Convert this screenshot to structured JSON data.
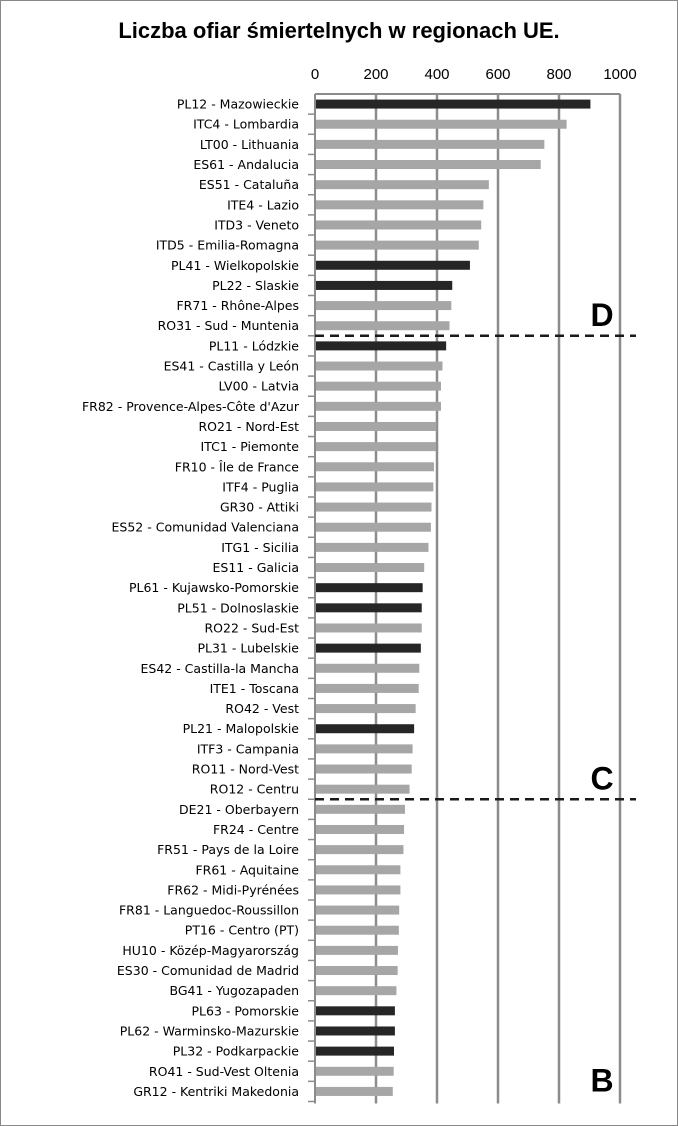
{
  "chart_data": {
    "type": "bar",
    "orientation": "horizontal",
    "title": "Liczba ofiar śmiertelnych w regionach UE.",
    "xlabel": "",
    "ylabel": "",
    "xlim": [
      0,
      1000
    ],
    "xticks": [
      0,
      200,
      400,
      600,
      800,
      1000
    ],
    "x_axis_position": "top",
    "grid": true,
    "colors": {
      "pl": "#262626",
      "other": "#a6a6a6",
      "grid": "#8c8c8c"
    },
    "categories": [
      "PL12 - Mazowieckie",
      "ITC4 - Lombardia",
      "LT00 - Lithuania",
      "ES61 - Andalucia",
      "ES51 - Cataluña",
      "ITE4 - Lazio",
      "ITD3 - Veneto",
      "ITD5 - Emilia-Romagna",
      "PL41 - Wielkopolskie",
      "PL22 - Slaskie",
      "FR71 - Rhône-Alpes",
      "RO31 - Sud - Muntenia",
      "PL11 - Lódzkie",
      "ES41 - Castilla  y León",
      "LV00 - Latvia",
      "FR82 - Provence-Alpes-Côte d'Azur",
      "RO21 - Nord-Est",
      "ITC1 - Piemonte",
      "FR10 - Île de France",
      "ITF4 - Puglia",
      "GR30 - Attiki",
      "ES52 - Comunidad  Valenciana",
      "ITG1 - Sicilia",
      "ES11 - Galicia",
      "PL61 - Kujawsko-Pomorskie",
      "PL51 - Dolnoslaskie",
      "RO22 - Sud-Est",
      "PL31 - Lubelskie",
      "ES42 - Castilla-la  Mancha",
      "ITE1 - Toscana",
      "RO42 - Vest",
      "PL21 - Malopolskie",
      "ITF3 - Campania",
      "RO11 - Nord-Vest",
      "RO12 - Centru",
      "DE21 - Oberbayern",
      "FR24 - Centre",
      "FR51 - Pays de la Loire",
      "FR61 - Aquitaine",
      "FR62 - Midi-Pyrénées",
      "FR81 - Languedoc-Roussillon",
      "PT16 - Centro (PT)",
      "HU10 - Közép-Magyarország",
      "ES30 - Comunidad  de Madrid",
      "BG41 - Yugozapaden",
      "PL63 - Pomorskie",
      "PL62 - Warminsko-Mazurskie",
      "PL32 - Podkarpackie",
      "RO41 - Sud-Vest Oltenia",
      "GR12 - Kentriki Makedonia"
    ],
    "values": [
      903,
      825,
      752,
      740,
      570,
      552,
      545,
      537,
      508,
      450,
      447,
      441,
      430,
      418,
      413,
      413,
      398,
      397,
      390,
      388,
      382,
      380,
      372,
      358,
      353,
      350,
      350,
      347,
      342,
      340,
      330,
      325,
      320,
      317,
      310,
      295,
      292,
      290,
      280,
      280,
      276,
      275,
      272,
      271,
      267,
      262,
      262,
      259,
      258,
      255
    ],
    "highlight": [
      true,
      false,
      false,
      false,
      false,
      false,
      false,
      false,
      true,
      true,
      false,
      false,
      true,
      false,
      false,
      false,
      false,
      false,
      false,
      false,
      false,
      false,
      false,
      false,
      true,
      true,
      false,
      true,
      false,
      false,
      false,
      true,
      false,
      false,
      false,
      false,
      false,
      false,
      false,
      false,
      false,
      false,
      false,
      false,
      false,
      true,
      true,
      true,
      false,
      false
    ],
    "zones": [
      {
        "label": "D",
        "from": 0,
        "to": 11
      },
      {
        "label": "C",
        "from": 12,
        "to": 34
      },
      {
        "label": "B",
        "from": 35,
        "to": 49
      }
    ]
  }
}
